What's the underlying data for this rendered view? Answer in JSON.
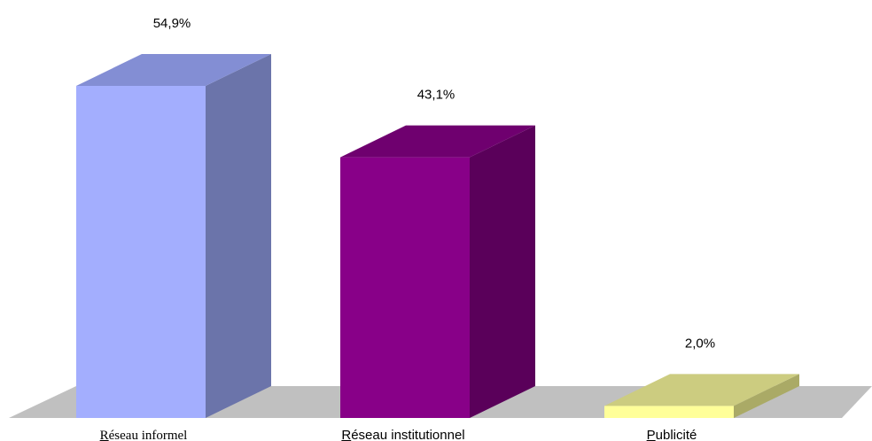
{
  "chart_data": {
    "type": "bar",
    "title": "",
    "xlabel": "",
    "ylabel": "",
    "ylim": [
      0,
      60
    ],
    "grid": false,
    "legend": "none",
    "categories": [
      "Réseau informel",
      "Réseau institutionnel",
      "Publicité"
    ],
    "values": [
      54.9,
      43.1,
      2.0
    ],
    "value_labels": [
      "54,9%",
      "43,1%",
      "2,0%"
    ],
    "colors": {
      "front": [
        "#a3aefe",
        "#880088",
        "#ffff99"
      ],
      "side": [
        "#6b74aa",
        "#5a005a",
        "#aaaa66"
      ],
      "top": [
        "#838ed4",
        "#6f006f",
        "#cccc80"
      ],
      "floor": "#c0c0c0"
    }
  }
}
